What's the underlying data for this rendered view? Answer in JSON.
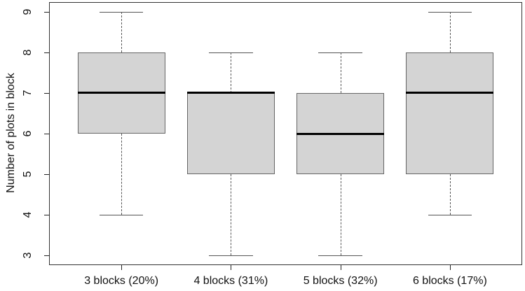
{
  "chart_data": {
    "type": "boxplot",
    "title": "",
    "xlabel": "",
    "ylabel": "Number of plots in block",
    "categories": [
      "3 blocks (20%)",
      "4 blocks (31%)",
      "5 blocks (32%)",
      "6 blocks (17%)"
    ],
    "boxes": [
      {
        "label": "3 blocks (20%)",
        "whisker_low": 4,
        "q1": 6,
        "median": 7,
        "q3": 8,
        "whisker_high": 9
      },
      {
        "label": "4 blocks (31%)",
        "whisker_low": 3,
        "q1": 5,
        "median": 7,
        "q3": 7,
        "whisker_high": 8
      },
      {
        "label": "5 blocks (32%)",
        "whisker_low": 3,
        "q1": 5,
        "median": 6,
        "q3": 7,
        "whisker_high": 8
      },
      {
        "label": "6 blocks (17%)",
        "whisker_low": 4,
        "q1": 5,
        "median": 7,
        "q3": 8,
        "whisker_high": 9
      }
    ],
    "yticks": [
      3,
      4,
      5,
      6,
      7,
      8,
      9
    ],
    "ylim": [
      2.76,
      9.24
    ],
    "grid": false,
    "legend": "none",
    "colors": {
      "box_fill": "#d4d4d4",
      "box_border": "#666666",
      "median": "#000000",
      "whisker": "#555555",
      "axis": "#222222",
      "text": "#111111",
      "background": "#ffffff"
    }
  }
}
